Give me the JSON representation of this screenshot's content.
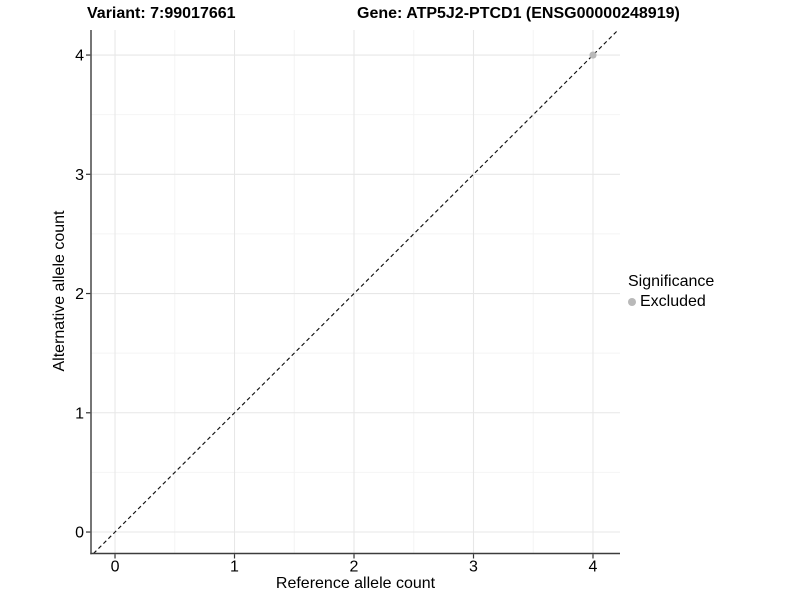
{
  "chart_data": {
    "type": "scatter",
    "titles": {
      "left": "Variant: 7:99017661",
      "right": "Gene: ATP5J2-PTCD1 (ENSG00000248919)"
    },
    "xlabel": "Reference allele count",
    "ylabel": "Alternative allele count",
    "x_ticks": [
      "0",
      "1",
      "2",
      "3",
      "4"
    ],
    "y_ticks": [
      "0",
      "1",
      "2",
      "3",
      "4"
    ],
    "xlim": [
      -0.201,
      4.226
    ],
    "ylim": [
      -0.18,
      4.21
    ],
    "grid": "on",
    "minor_grid": "on",
    "series": [
      {
        "name": "Excluded",
        "color": "#b9b9b9",
        "marker": "circle",
        "points": [
          {
            "x": 4,
            "y": 4
          }
        ]
      }
    ],
    "reference_line": {
      "kind": "y=x",
      "style": "dashed",
      "color": "#111111"
    },
    "legend": {
      "title": "Significance",
      "position": "right",
      "entries": [
        {
          "label": "Excluded",
          "color": "#b9b9b9"
        }
      ]
    },
    "colors": {
      "background": "#ffffff",
      "grid_major": "#e7e7e7",
      "grid_minor": "#f4f4f4",
      "axis": "#3c3c3c",
      "tick": "#333333",
      "text": "#000000"
    }
  }
}
